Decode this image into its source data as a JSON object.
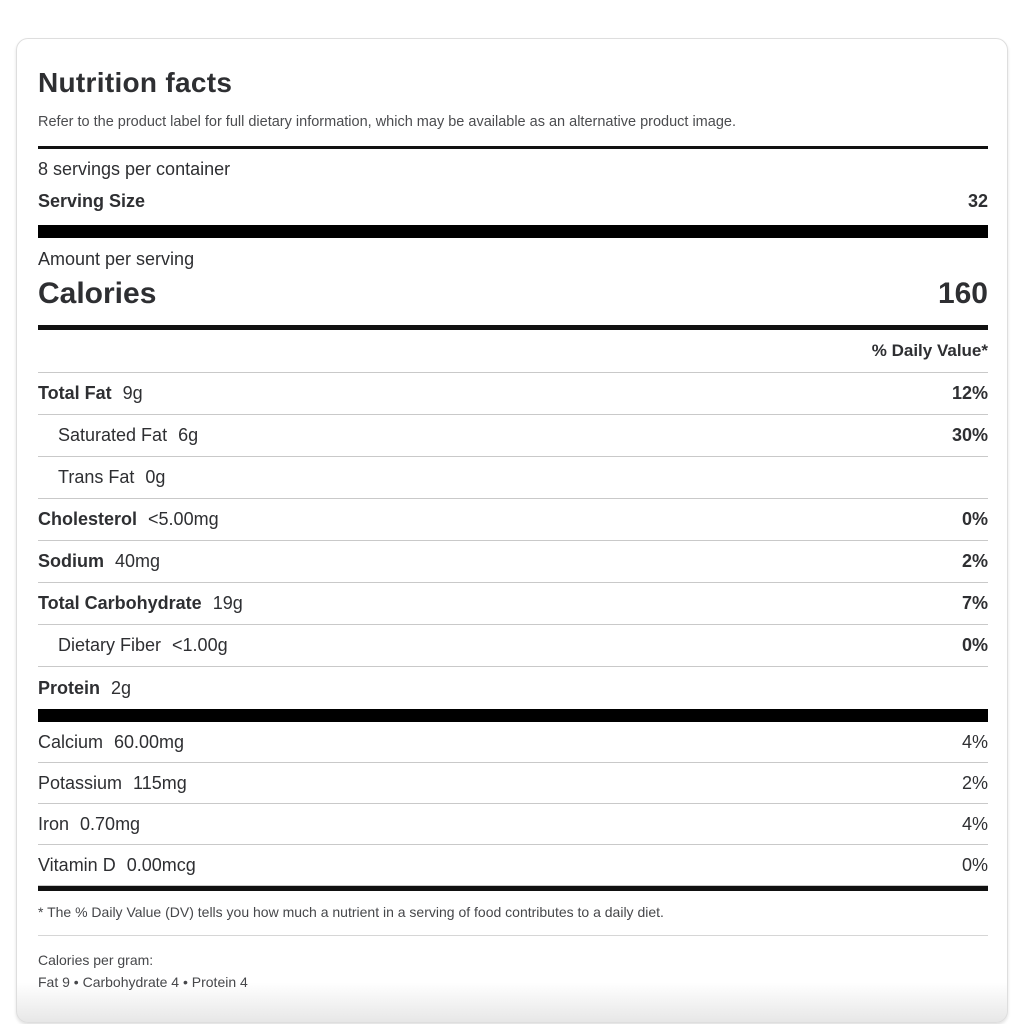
{
  "header": {
    "title": "Nutrition facts",
    "disclaimer": "Refer to the product label for full dietary information, which may be available as an alternative product image."
  },
  "serving_info": {
    "servings_per_container": "8 servings per container",
    "serving_size_label": "Serving Size",
    "serving_size_value": "32"
  },
  "calories": {
    "amount_per_serving_label": "Amount per serving",
    "label": "Calories",
    "value": "160"
  },
  "daily_value_header": "% Daily Value*",
  "nutrients": [
    {
      "label": "Total Fat",
      "amount": "9g",
      "dv": "12%"
    },
    {
      "label": "Saturated Fat",
      "amount": "6g",
      "dv": "30%"
    },
    {
      "label": "Trans Fat",
      "amount": "0g",
      "dv": ""
    },
    {
      "label": "Cholesterol",
      "amount": "<5.00mg",
      "dv": "0%"
    },
    {
      "label": "Sodium",
      "amount": "40mg",
      "dv": "2%"
    },
    {
      "label": "Total Carbohydrate",
      "amount": "19g",
      "dv": "7%"
    },
    {
      "label": "Dietary Fiber",
      "amount": "<1.00g",
      "dv": "0%"
    },
    {
      "label": "Protein",
      "amount": "2g",
      "dv": ""
    }
  ],
  "minerals": [
    {
      "label": "Calcium",
      "amount": "60.00mg",
      "dv": "4%"
    },
    {
      "label": "Potassium",
      "amount": "115mg",
      "dv": "2%"
    },
    {
      "label": "Iron",
      "amount": "0.70mg",
      "dv": "4%"
    },
    {
      "label": "Vitamin D",
      "amount": "0.00mcg",
      "dv": "0%"
    }
  ],
  "footnotes": {
    "daily_value_note": "* The % Daily Value (DV) tells you how much a nutrient in a serving of food contributes to a daily diet.",
    "calories_per_gram_label": "Calories per gram:",
    "calories_per_gram_values": "Fat 9 • Carbohydrate 4 • Protein 4"
  },
  "colors": {
    "text": "#2e2f32",
    "divider": "#c9c9c9",
    "bar": "#000000"
  }
}
